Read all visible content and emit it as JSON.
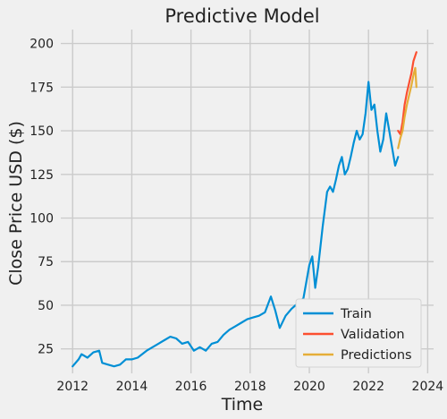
{
  "chart_data": {
    "type": "line",
    "title": "Predictive Model",
    "xlabel": "Time",
    "ylabel": "Close Price USD ($)",
    "xlim": [
      2011.6,
      2024.2
    ],
    "ylim": [
      11,
      208
    ],
    "xticks": [
      2012,
      2014,
      2016,
      2018,
      2020,
      2022,
      2024
    ],
    "yticks": [
      25,
      50,
      75,
      100,
      125,
      150,
      175,
      200
    ],
    "grid": true,
    "legend_position": "lower-right",
    "colors": {
      "background": "#f0f0f0",
      "grid": "#cbcbcb",
      "train": "#008fd5",
      "validation": "#fc4f30",
      "predictions": "#e5ae38"
    },
    "series": [
      {
        "name": "Train",
        "x": [
          2012.0,
          2012.2,
          2012.3,
          2012.5,
          2012.7,
          2012.9,
          2013.0,
          2013.2,
          2013.4,
          2013.6,
          2013.8,
          2014.0,
          2014.2,
          2014.5,
          2014.7,
          2014.9,
          2015.1,
          2015.3,
          2015.5,
          2015.7,
          2015.9,
          2016.1,
          2016.3,
          2016.5,
          2016.7,
          2016.9,
          2017.1,
          2017.3,
          2017.5,
          2017.7,
          2017.9,
          2018.1,
          2018.3,
          2018.5,
          2018.7,
          2018.85,
          2019.0,
          2019.2,
          2019.4,
          2019.6,
          2019.8,
          2020.0,
          2020.1,
          2020.2,
          2020.3,
          2020.45,
          2020.6,
          2020.7,
          2020.8,
          2020.9,
          2021.0,
          2021.1,
          2021.2,
          2021.3,
          2021.4,
          2021.5,
          2021.6,
          2021.7,
          2021.8,
          2021.9,
          2022.0,
          2022.1,
          2022.2,
          2022.3,
          2022.4,
          2022.5,
          2022.6,
          2022.7,
          2022.8,
          2022.9,
          2023.0
        ],
        "values": [
          15,
          19,
          22,
          20,
          23,
          24,
          17,
          16,
          15,
          16,
          19,
          19,
          20,
          24,
          26,
          28,
          30,
          32,
          31,
          28,
          29,
          24,
          26,
          24,
          28,
          29,
          33,
          36,
          38,
          40,
          42,
          43,
          44,
          46,
          55,
          47,
          37,
          44,
          48,
          51,
          54,
          73,
          78,
          60,
          72,
          95,
          115,
          118,
          115,
          122,
          130,
          135,
          125,
          128,
          135,
          143,
          150,
          145,
          148,
          160,
          178,
          162,
          165,
          150,
          138,
          145,
          160,
          150,
          140,
          130,
          135
        ]
      },
      {
        "name": "Validation",
        "x": [
          2023.0,
          2023.08,
          2023.15,
          2023.22,
          2023.3,
          2023.38,
          2023.45,
          2023.52,
          2023.58,
          2023.62
        ],
        "values": [
          150,
          148,
          155,
          165,
          172,
          178,
          183,
          190,
          193,
          195
        ]
      },
      {
        "name": "Predictions",
        "x": [
          2023.0,
          2023.08,
          2023.15,
          2023.22,
          2023.3,
          2023.38,
          2023.45,
          2023.52,
          2023.58,
          2023.62
        ],
        "values": [
          140,
          146,
          150,
          158,
          165,
          171,
          176,
          182,
          186,
          175
        ]
      }
    ]
  }
}
